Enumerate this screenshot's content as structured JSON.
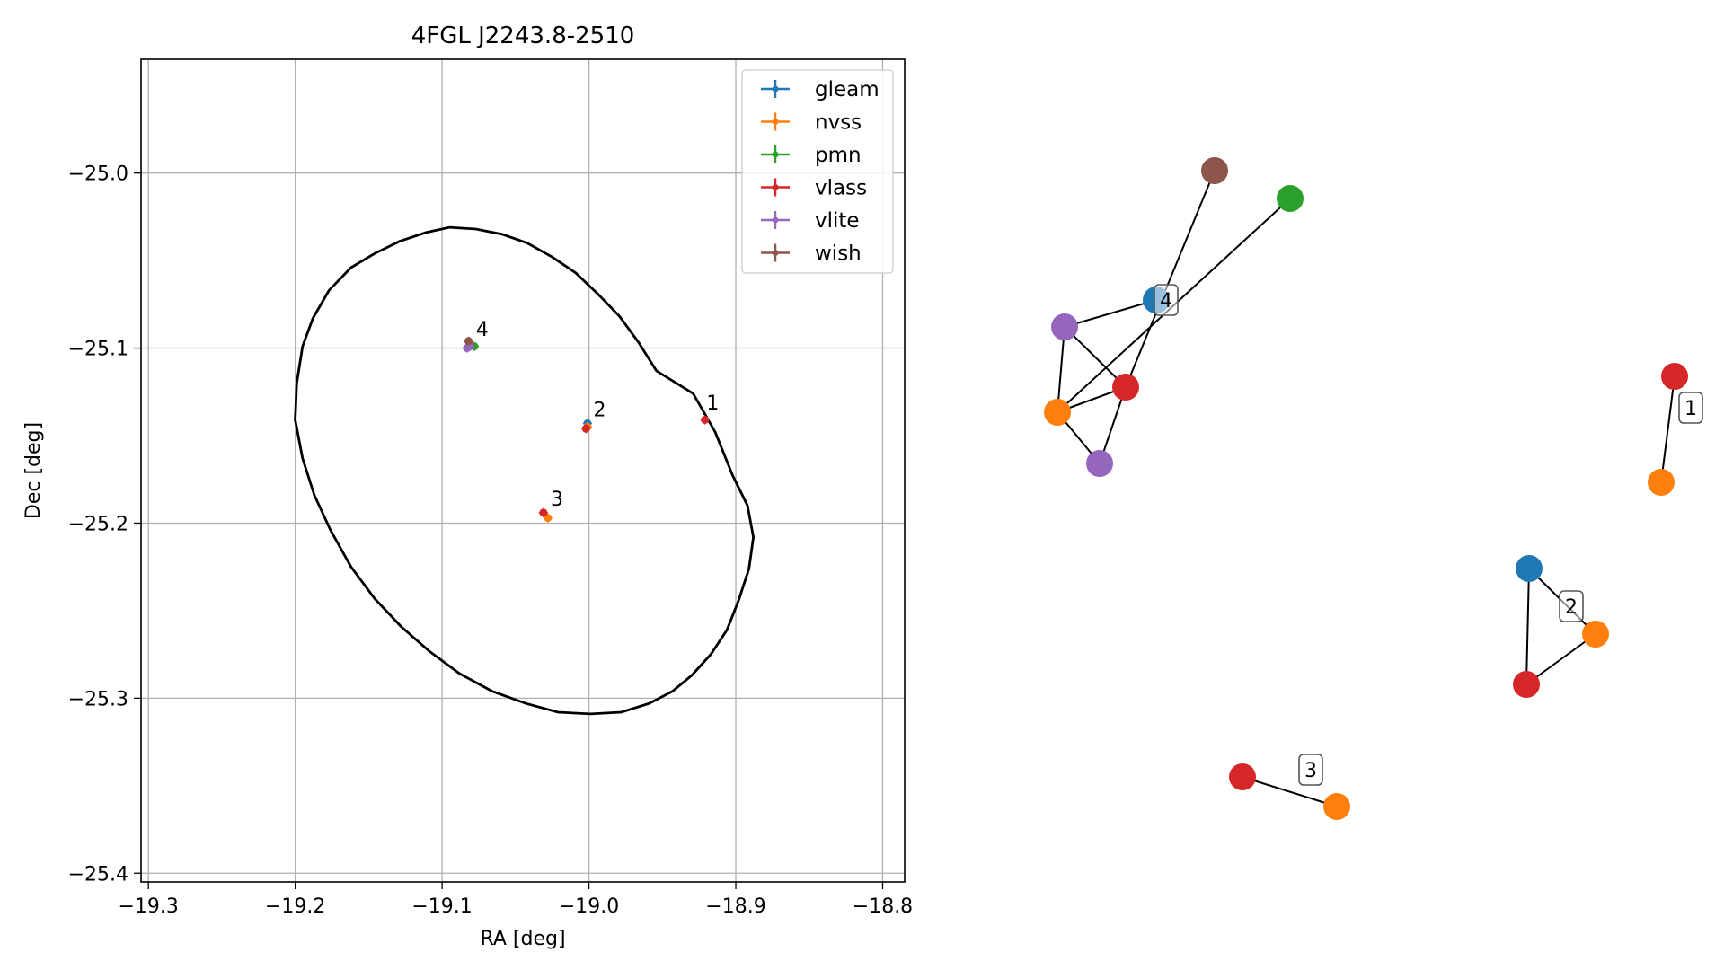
{
  "chart_data": [
    {
      "type": "scatter",
      "title": "4FGL J2243.8-2510",
      "xlabel": "RA [deg]",
      "ylabel": "Dec [deg]",
      "xlim": [
        -19.305,
        -18.785
      ],
      "ylim": [
        -25.405,
        -24.935
      ],
      "grid": true,
      "legend_position": "top-right",
      "x_ticks": [
        {
          "value": -19.3,
          "label": "−19.3"
        },
        {
          "value": -19.2,
          "label": "−19.2"
        },
        {
          "value": -19.1,
          "label": "−19.1"
        },
        {
          "value": -19.0,
          "label": "−19.0"
        },
        {
          "value": -18.9,
          "label": "−18.9"
        },
        {
          "value": -18.8,
          "label": "−18.8"
        }
      ],
      "y_ticks": [
        {
          "value": -25.0,
          "label": "−25.0"
        },
        {
          "value": -25.1,
          "label": "−25.1"
        },
        {
          "value": -25.2,
          "label": "−25.2"
        },
        {
          "value": -25.3,
          "label": "−25.3"
        },
        {
          "value": -25.4,
          "label": "−25.4"
        }
      ],
      "series": [
        {
          "name": "gleam",
          "color": "#1f77b4",
          "points": [
            {
              "x": -19.001,
              "y": -25.143
            }
          ]
        },
        {
          "name": "nvss",
          "color": "#ff7f0e",
          "points": [
            {
              "x": -19.001,
              "y": -25.145
            },
            {
              "x": -19.028,
              "y": -25.197
            }
          ]
        },
        {
          "name": "pmn",
          "color": "#2ca02c",
          "points": [
            {
              "x": -19.078,
              "y": -25.099
            }
          ]
        },
        {
          "name": "vlass",
          "color": "#d62728",
          "points": [
            {
              "x": -18.921,
              "y": -25.141
            },
            {
              "x": -19.002,
              "y": -25.146
            },
            {
              "x": -19.031,
              "y": -25.194
            },
            {
              "x": -19.081,
              "y": -25.098
            }
          ]
        },
        {
          "name": "vlite",
          "color": "#9467bd",
          "points": [
            {
              "x": -19.083,
              "y": -25.1
            },
            {
              "x": -19.081,
              "y": -25.099
            }
          ]
        },
        {
          "name": "wish",
          "color": "#8c564b",
          "points": [
            {
              "x": -19.082,
              "y": -25.096
            }
          ]
        }
      ],
      "ellipse": {
        "center": [
          -19.04,
          -25.17
        ],
        "points": [
          [
            -19.095,
            -25.031
          ],
          [
            -19.077,
            -25.032
          ],
          [
            -19.059,
            -25.035
          ],
          [
            -19.042,
            -25.04
          ],
          [
            -19.025,
            -25.048
          ],
          [
            -19.009,
            -25.057
          ],
          [
            -18.994,
            -25.069
          ],
          [
            -18.979,
            -25.082
          ],
          [
            -18.966,
            -25.097
          ],
          [
            -18.954,
            -25.113
          ],
          [
            -18.929,
            -25.126
          ],
          [
            -18.914,
            -25.148
          ],
          [
            -18.902,
            -25.173
          ],
          [
            -18.892,
            -25.19
          ],
          [
            -18.888,
            -25.208
          ],
          [
            -18.891,
            -25.226
          ],
          [
            -18.898,
            -25.244
          ],
          [
            -18.906,
            -25.261
          ],
          [
            -18.917,
            -25.275
          ],
          [
            -18.93,
            -25.287
          ],
          [
            -18.943,
            -25.296
          ],
          [
            -18.959,
            -25.303
          ],
          [
            -18.978,
            -25.308
          ],
          [
            -18.999,
            -25.309
          ],
          [
            -19.021,
            -25.308
          ],
          [
            -19.043,
            -25.303
          ],
          [
            -19.066,
            -25.296
          ],
          [
            -19.088,
            -25.286
          ],
          [
            -19.109,
            -25.273
          ],
          [
            -19.128,
            -25.259
          ],
          [
            -19.146,
            -25.243
          ],
          [
            -19.162,
            -25.225
          ],
          [
            -19.176,
            -25.204
          ],
          [
            -19.187,
            -25.184
          ],
          [
            -19.195,
            -25.163
          ],
          [
            -19.2,
            -25.141
          ],
          [
            -19.199,
            -25.12
          ],
          [
            -19.195,
            -25.099
          ],
          [
            -19.188,
            -25.083
          ],
          [
            -19.177,
            -25.067
          ],
          [
            -19.162,
            -25.054
          ],
          [
            -19.146,
            -25.046
          ],
          [
            -19.129,
            -25.039
          ],
          [
            -19.111,
            -25.034
          ],
          [
            -19.095,
            -25.031
          ]
        ]
      },
      "annotations": [
        {
          "text": "1",
          "x": -18.92,
          "y": -25.135
        },
        {
          "text": "2",
          "x": -18.997,
          "y": -25.139
        },
        {
          "text": "3",
          "x": -19.026,
          "y": -25.19
        },
        {
          "text": "4",
          "x": -19.077,
          "y": -25.093
        }
      ]
    },
    {
      "type": "network",
      "nodes": [
        {
          "id": "wish",
          "color": "#8c564b"
        },
        {
          "id": "pmn",
          "color": "#2ca02c"
        },
        {
          "id": "gleam4",
          "color": "#1f77b4"
        },
        {
          "id": "vlite_a",
          "color": "#9467bd"
        },
        {
          "id": "vlass4",
          "color": "#d62728"
        },
        {
          "id": "nvss4",
          "color": "#ff7f0e"
        },
        {
          "id": "vlite_b",
          "color": "#9467bd"
        },
        {
          "id": "vlass1",
          "color": "#d62728"
        },
        {
          "id": "nvss1",
          "color": "#ff7f0e"
        },
        {
          "id": "gleam2",
          "color": "#1f77b4"
        },
        {
          "id": "nvss2",
          "color": "#ff7f0e"
        },
        {
          "id": "vlass2",
          "color": "#d62728"
        },
        {
          "id": "vlass3",
          "color": "#d62728"
        },
        {
          "id": "nvss3",
          "color": "#ff7f0e"
        }
      ],
      "edges": [
        [
          "wish",
          "vlass4"
        ],
        [
          "pmn",
          "nvss4"
        ],
        [
          "vlite_a",
          "gleam4"
        ],
        [
          "vlite_a",
          "nvss4"
        ],
        [
          "vlite_a",
          "vlass4"
        ],
        [
          "nvss4",
          "vlass4"
        ],
        [
          "nvss4",
          "vlite_b"
        ],
        [
          "vlass4",
          "vlite_b"
        ],
        [
          "vlass1",
          "nvss1"
        ],
        [
          "gleam2",
          "nvss2"
        ],
        [
          "gleam2",
          "vlass2"
        ],
        [
          "vlass2",
          "nvss2"
        ],
        [
          "vlass3",
          "nvss3"
        ]
      ],
      "labels": [
        {
          "text": "1",
          "group": [
            "vlass1",
            "nvss1"
          ]
        },
        {
          "text": "2",
          "group": [
            "gleam2",
            "nvss2",
            "vlass2"
          ]
        },
        {
          "text": "3",
          "group": [
            "vlass3",
            "nvss3"
          ]
        },
        {
          "text": "4",
          "group": [
            "gleam4"
          ]
        }
      ]
    }
  ]
}
